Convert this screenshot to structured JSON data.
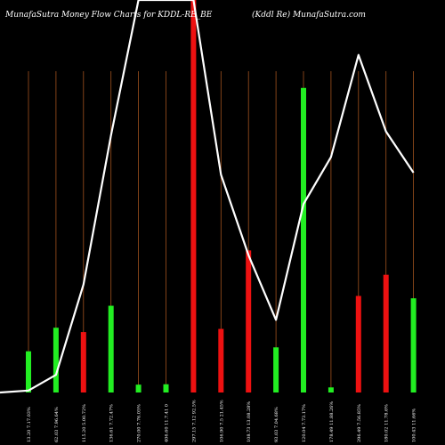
{
  "header": {
    "left": "MunafaSutra  Money Flow  Charts for KDDL-RE_BE",
    "right": "(Kddl Re) MunafaSutra.com"
  },
  "colors": {
    "background": "#000000",
    "up": "#22ee22",
    "down": "#ee1111",
    "grid": "#a0521e",
    "line": "#ffffff",
    "text": "#ffffff"
  },
  "chart_data": {
    "type": "bar",
    "title": "MunafaSutra  Money Flow  Charts for KDDL-RE_BE",
    "ylim": [
      0,
      100
    ],
    "categories": [
      "13.20 7.17.03%",
      "62.03 7.96.64%",
      "115.20 5.00.72%",
      "136.61 7.72.47%",
      "270.00 7.76.05%",
      "406.60 11.7.41 0",
      "297.15 7.12 92.5%",
      "106.90 7.5 21.45%",
      "108.73 13.08.28%",
      "93.03 7.04.68%",
      "120.04 7.73.17%",
      "178.49 11.88.26%",
      "296.49 7.56.85%",
      "180.02 11.78.6%",
      "100.43 11.66%"
    ],
    "colors": [
      "up",
      "up",
      "down",
      "up",
      "up",
      "up",
      "down",
      "down",
      "down",
      "up",
      "up",
      "up",
      "down",
      "down",
      "up"
    ],
    "values": [
      10.5,
      16.5,
      15.4,
      22.1,
      2.0,
      2.1,
      100,
      16.2,
      36.2,
      11.5,
      77.6,
      1.3,
      24.6,
      30.0,
      24.0
    ],
    "line": [
      0.5,
      4.5,
      27.5,
      65.5,
      100,
      100,
      100,
      55.5,
      35,
      18.5,
      48,
      60,
      86,
      66.5,
      56
    ]
  }
}
